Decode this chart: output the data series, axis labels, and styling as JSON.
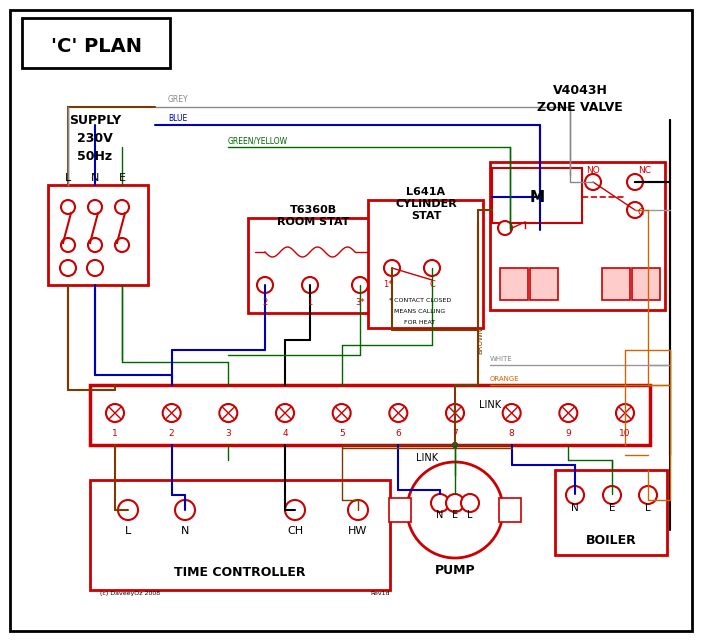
{
  "title": "'C' PLAN",
  "red": "#cc0000",
  "blue": "#0000bb",
  "green": "#006600",
  "brown": "#7a3b00",
  "grey": "#888888",
  "orange": "#cc6600",
  "black": "#000000",
  "white": "#ffffff",
  "terminal_labels": [
    "1",
    "2",
    "3",
    "4",
    "5",
    "6",
    "7",
    "8",
    "9",
    "10"
  ],
  "tc_labels": [
    "L",
    "N",
    "CH",
    "HW"
  ],
  "pump_labels": [
    "N",
    "E",
    "L"
  ],
  "boiler_labels": [
    "N",
    "E",
    "L"
  ],
  "supply_lines": [
    "SUPPLY",
    "230V",
    "50Hz"
  ],
  "zone_valve_lines": [
    "V4043H",
    "ZONE VALVE"
  ],
  "room_stat_lines": [
    "T6360B",
    "ROOM STAT"
  ],
  "cyl_stat_lines": [
    "L641A",
    "CYLINDER",
    "STAT"
  ],
  "note_lines": [
    "* CONTACT CLOSED",
    "MEANS CALLING",
    "FOR HEAT"
  ],
  "tc_title": "TIME CONTROLLER",
  "pump_title": "PUMP",
  "boiler_title": "BOILER",
  "copyright": "(c) DaveeyOz 2008",
  "revision": "Rev1d"
}
